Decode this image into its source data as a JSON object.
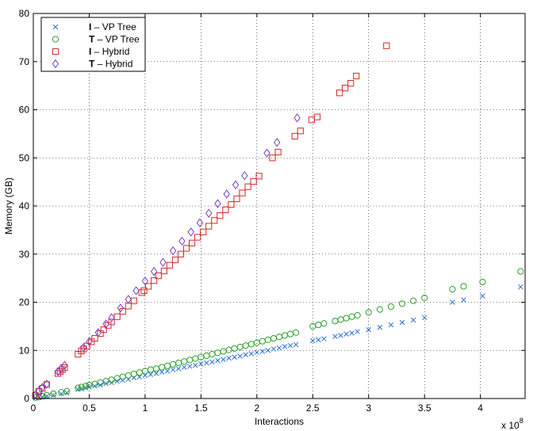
{
  "chart_data": {
    "type": "scatter",
    "xlabel": "Interactions",
    "ylabel": "Memory (GB)",
    "x_multiplier_label": "x 10",
    "x_multiplier_exponent": "8",
    "xlim": [
      0,
      4.4
    ],
    "ylim": [
      0,
      80
    ],
    "xticks": [
      0,
      0.5,
      1,
      1.5,
      2,
      2.5,
      3,
      3.5,
      4
    ],
    "yticks": [
      0,
      10,
      20,
      30,
      40,
      50,
      60,
      70,
      80
    ],
    "grid": true,
    "legend_position": "top-left",
    "series": [
      {
        "name": "VP Tree",
        "label_prefix": "I",
        "marker": "x",
        "color": "#2a6fcf",
        "points": [
          [
            0.02,
            0.1
          ],
          [
            0.05,
            0.2
          ],
          [
            0.08,
            0.3
          ],
          [
            0.12,
            0.5
          ],
          [
            0.18,
            0.7
          ],
          [
            0.25,
            1.0
          ],
          [
            0.3,
            1.2
          ],
          [
            0.4,
            1.9
          ],
          [
            0.43,
            2.0
          ],
          [
            0.47,
            2.2
          ],
          [
            0.5,
            2.4
          ],
          [
            0.55,
            2.6
          ],
          [
            0.6,
            2.8
          ],
          [
            0.65,
            3.1
          ],
          [
            0.7,
            3.3
          ],
          [
            0.75,
            3.6
          ],
          [
            0.8,
            3.8
          ],
          [
            0.85,
            4.0
          ],
          [
            0.9,
            4.3
          ],
          [
            0.95,
            4.5
          ],
          [
            1.0,
            4.8
          ],
          [
            1.05,
            5.0
          ],
          [
            1.1,
            5.2
          ],
          [
            1.15,
            5.5
          ],
          [
            1.2,
            5.7
          ],
          [
            1.25,
            6.0
          ],
          [
            1.3,
            6.2
          ],
          [
            1.35,
            6.5
          ],
          [
            1.4,
            6.7
          ],
          [
            1.45,
            6.9
          ],
          [
            1.5,
            7.2
          ],
          [
            1.55,
            7.4
          ],
          [
            1.6,
            7.6
          ],
          [
            1.65,
            7.9
          ],
          [
            1.7,
            8.1
          ],
          [
            1.75,
            8.4
          ],
          [
            1.8,
            8.6
          ],
          [
            1.85,
            8.8
          ],
          [
            1.9,
            9.1
          ],
          [
            1.95,
            9.3
          ],
          [
            2.0,
            9.6
          ],
          [
            2.05,
            9.8
          ],
          [
            2.1,
            10.0
          ],
          [
            2.15,
            10.3
          ],
          [
            2.2,
            10.5
          ],
          [
            2.25,
            10.8
          ],
          [
            2.3,
            11.0
          ],
          [
            2.35,
            11.2
          ],
          [
            2.5,
            12.0
          ],
          [
            2.55,
            12.2
          ],
          [
            2.6,
            12.4
          ],
          [
            2.7,
            12.9
          ],
          [
            2.75,
            13.1
          ],
          [
            2.8,
            13.4
          ],
          [
            2.85,
            13.6
          ],
          [
            2.9,
            13.9
          ],
          [
            3.0,
            14.3
          ],
          [
            3.1,
            14.8
          ],
          [
            3.2,
            15.3
          ],
          [
            3.3,
            15.8
          ],
          [
            3.4,
            16.3
          ],
          [
            3.5,
            16.8
          ],
          [
            3.75,
            20.0
          ],
          [
            3.85,
            20.5
          ],
          [
            4.02,
            21.3
          ],
          [
            4.36,
            23.2
          ]
        ]
      },
      {
        "name": "VP Tree",
        "label_prefix": "T",
        "marker": "circle",
        "color": "#2ca02c",
        "points": [
          [
            0.02,
            0.2
          ],
          [
            0.05,
            0.3
          ],
          [
            0.08,
            0.5
          ],
          [
            0.12,
            0.7
          ],
          [
            0.18,
            1.0
          ],
          [
            0.25,
            1.3
          ],
          [
            0.3,
            1.5
          ],
          [
            0.4,
            2.2
          ],
          [
            0.43,
            2.4
          ],
          [
            0.47,
            2.6
          ],
          [
            0.5,
            2.8
          ],
          [
            0.55,
            3.0
          ],
          [
            0.6,
            3.3
          ],
          [
            0.65,
            3.6
          ],
          [
            0.7,
            3.9
          ],
          [
            0.75,
            4.2
          ],
          [
            0.8,
            4.5
          ],
          [
            0.85,
            4.8
          ],
          [
            0.9,
            5.1
          ],
          [
            0.95,
            5.4
          ],
          [
            1.0,
            5.7
          ],
          [
            1.05,
            6.0
          ],
          [
            1.1,
            6.2
          ],
          [
            1.15,
            6.5
          ],
          [
            1.2,
            6.8
          ],
          [
            1.25,
            7.1
          ],
          [
            1.3,
            7.4
          ],
          [
            1.35,
            7.7
          ],
          [
            1.4,
            8.0
          ],
          [
            1.45,
            8.3
          ],
          [
            1.5,
            8.6
          ],
          [
            1.55,
            8.9
          ],
          [
            1.6,
            9.2
          ],
          [
            1.65,
            9.5
          ],
          [
            1.7,
            9.8
          ],
          [
            1.75,
            10.1
          ],
          [
            1.8,
            10.4
          ],
          [
            1.85,
            10.7
          ],
          [
            1.9,
            11.0
          ],
          [
            1.95,
            11.3
          ],
          [
            2.0,
            11.6
          ],
          [
            2.05,
            11.9
          ],
          [
            2.1,
            12.2
          ],
          [
            2.15,
            12.5
          ],
          [
            2.2,
            12.8
          ],
          [
            2.25,
            13.1
          ],
          [
            2.3,
            13.4
          ],
          [
            2.35,
            13.7
          ],
          [
            2.5,
            15.0
          ],
          [
            2.55,
            15.3
          ],
          [
            2.6,
            15.6
          ],
          [
            2.7,
            16.1
          ],
          [
            2.75,
            16.4
          ],
          [
            2.8,
            16.7
          ],
          [
            2.85,
            17.0
          ],
          [
            2.9,
            17.3
          ],
          [
            3.0,
            17.9
          ],
          [
            3.1,
            18.5
          ],
          [
            3.2,
            19.1
          ],
          [
            3.3,
            19.7
          ],
          [
            3.4,
            20.3
          ],
          [
            3.5,
            20.9
          ],
          [
            3.75,
            22.7
          ],
          [
            3.85,
            23.3
          ],
          [
            4.02,
            24.2
          ],
          [
            4.36,
            26.4
          ]
        ]
      },
      {
        "name": "Hybrid",
        "label_prefix": "I",
        "marker": "square",
        "color": "#d62728",
        "points": [
          [
            0.02,
            0.6
          ],
          [
            0.05,
            1.5
          ],
          [
            0.08,
            2.1
          ],
          [
            0.12,
            2.9
          ],
          [
            0.22,
            5.2
          ],
          [
            0.24,
            5.6
          ],
          [
            0.26,
            6.0
          ],
          [
            0.28,
            6.4
          ],
          [
            0.4,
            9.2
          ],
          [
            0.43,
            9.9
          ],
          [
            0.45,
            10.3
          ],
          [
            0.48,
            10.9
          ],
          [
            0.52,
            11.8
          ],
          [
            0.55,
            12.5
          ],
          [
            0.6,
            13.5
          ],
          [
            0.63,
            14.3
          ],
          [
            0.67,
            15.2
          ],
          [
            0.7,
            15.9
          ],
          [
            0.75,
            17.0
          ],
          [
            0.8,
            18.1
          ],
          [
            0.85,
            19.2
          ],
          [
            0.9,
            20.3
          ],
          [
            0.97,
            22.0
          ],
          [
            0.99,
            22.4
          ],
          [
            1.03,
            23.3
          ],
          [
            1.08,
            24.5
          ],
          [
            1.12,
            25.5
          ],
          [
            1.17,
            26.5
          ],
          [
            1.22,
            27.7
          ],
          [
            1.27,
            28.8
          ],
          [
            1.32,
            30.0
          ],
          [
            1.37,
            31.2
          ],
          [
            1.42,
            32.3
          ],
          [
            1.47,
            33.5
          ],
          [
            1.52,
            34.6
          ],
          [
            1.57,
            35.8
          ],
          [
            1.62,
            37.0
          ],
          [
            1.67,
            38.0
          ],
          [
            1.72,
            39.2
          ],
          [
            1.77,
            40.3
          ],
          [
            1.82,
            41.5
          ],
          [
            1.87,
            42.7
          ],
          [
            1.92,
            44.0
          ],
          [
            1.97,
            45.1
          ],
          [
            2.02,
            46.2
          ],
          [
            2.14,
            50.0
          ],
          [
            2.19,
            51.2
          ],
          [
            2.34,
            54.5
          ],
          [
            2.39,
            55.6
          ],
          [
            2.49,
            57.9
          ],
          [
            2.54,
            58.5
          ],
          [
            2.74,
            63.5
          ],
          [
            2.79,
            64.5
          ],
          [
            2.84,
            65.5
          ],
          [
            2.89,
            67.0
          ],
          [
            3.16,
            73.3
          ]
        ]
      },
      {
        "name": "Hybrid",
        "label_prefix": "T",
        "marker": "diamond",
        "color": "#7b3fbf",
        "points": [
          [
            0.02,
            0.8
          ],
          [
            0.05,
            1.6
          ],
          [
            0.08,
            2.3
          ],
          [
            0.12,
            3.0
          ],
          [
            0.22,
            5.6
          ],
          [
            0.25,
            6.3
          ],
          [
            0.28,
            6.9
          ],
          [
            0.45,
            10.6
          ],
          [
            0.5,
            11.8
          ],
          [
            0.58,
            13.7
          ],
          [
            0.65,
            15.5
          ],
          [
            0.7,
            16.8
          ],
          [
            0.78,
            18.8
          ],
          [
            0.85,
            20.6
          ],
          [
            0.92,
            22.4
          ],
          [
            1.0,
            24.4
          ],
          [
            1.08,
            26.4
          ],
          [
            1.16,
            28.3
          ],
          [
            1.25,
            30.7
          ],
          [
            1.33,
            32.7
          ],
          [
            1.41,
            34.6
          ],
          [
            1.49,
            36.5
          ],
          [
            1.57,
            38.5
          ],
          [
            1.65,
            40.5
          ],
          [
            1.73,
            42.5
          ],
          [
            1.81,
            44.4
          ],
          [
            1.89,
            46.3
          ],
          [
            2.09,
            51.0
          ],
          [
            2.18,
            53.2
          ],
          [
            2.36,
            58.3
          ]
        ]
      }
    ]
  }
}
